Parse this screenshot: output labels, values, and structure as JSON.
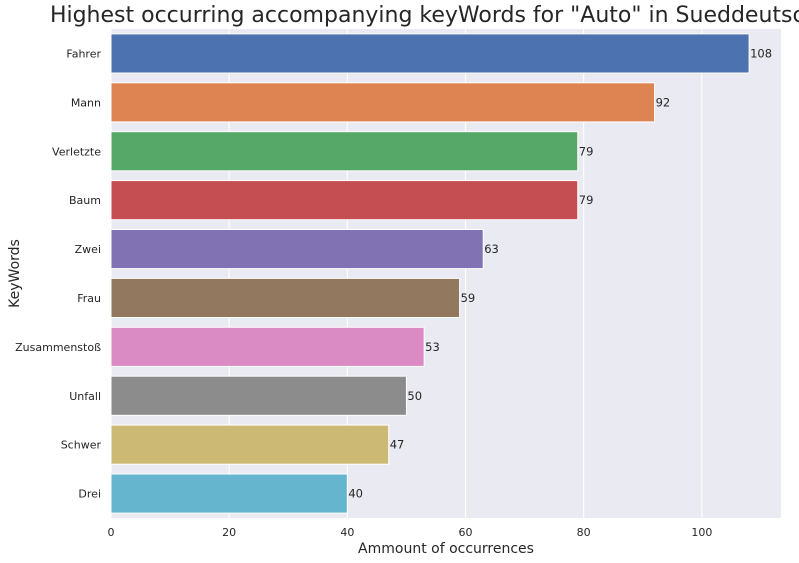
{
  "chart_data": {
    "type": "bar",
    "orientation": "horizontal",
    "title": "Highest occurring accompanying keyWords for \"Auto\" in Sueddeutsche",
    "xlabel": "Ammount of occurrences",
    "ylabel": "KeyWords",
    "xlim": [
      0,
      113.4
    ],
    "x_ticks": [
      0,
      20,
      40,
      60,
      80,
      100
    ],
    "grid": true,
    "categories": [
      "Fahrer",
      "Mann",
      "Verletzte",
      "Baum",
      "Zwei",
      "Frau",
      "Zusammenstoß",
      "Unfall",
      "Schwer",
      "Drei"
    ],
    "values": [
      108,
      92,
      79,
      79,
      63,
      59,
      53,
      50,
      47,
      40
    ],
    "data_labels": [
      "108",
      "92",
      "79",
      "79",
      "63",
      "59",
      "53",
      "50",
      "47",
      "40"
    ],
    "colors": [
      "#4c72b0",
      "#dd8452",
      "#55a868",
      "#c44e52",
      "#8172b3",
      "#937860",
      "#da8bc3",
      "#8c8c8c",
      "#ccb974",
      "#64b5cd"
    ],
    "plot_background": "#eaeaf2",
    "grid_color": "#ffffff"
  }
}
